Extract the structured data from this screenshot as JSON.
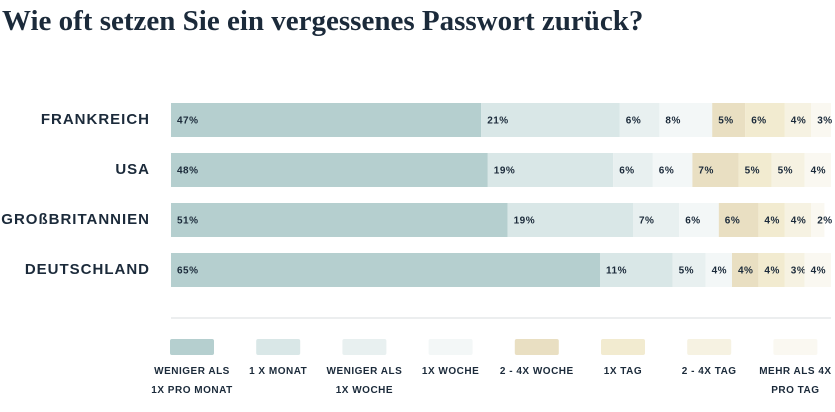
{
  "chart_data": {
    "type": "stacked-bar-horizontal",
    "title": "Wie oft setzen Sie ein vergessenes Passwort zurück?",
    "categories": [
      "FRANKREICH",
      "USA",
      "GROßBRITANNIEN",
      "DEUTSCHLAND"
    ],
    "xlim": [
      0,
      100
    ],
    "series": [
      {
        "name": "WENIGER ALS 1X PRO MONAT",
        "color": "#b5cfcf",
        "values": [
          47,
          48,
          51,
          65
        ],
        "value_labels": [
          "47%",
          "48%",
          "51%",
          "65%"
        ]
      },
      {
        "name": "1 X MONAT",
        "color": "#d9e7e7",
        "values": [
          21,
          19,
          19,
          11
        ],
        "value_labels": [
          "21%",
          "19%",
          "19%",
          "11%"
        ]
      },
      {
        "name": "WENIGER ALS 1X WOCHE",
        "color": "#e8f0f0",
        "values": [
          6,
          6,
          7,
          5
        ],
        "value_labels": [
          "6%",
          "6%",
          "7%",
          "5%"
        ]
      },
      {
        "name": "1X WOCHE",
        "color": "#f3f7f7",
        "values": [
          8,
          6,
          6,
          4
        ],
        "value_labels": [
          "8%",
          "6%",
          "6%",
          "4%"
        ]
      },
      {
        "name": "2 - 4X WOCHE",
        "color": "#e9dfc2",
        "values": [
          5,
          7,
          6,
          4
        ],
        "value_labels": [
          "5%",
          "7%",
          "6%",
          "4%"
        ]
      },
      {
        "name": "1X TAG",
        "color": "#f2ebd0",
        "values": [
          6,
          5,
          4,
          4
        ],
        "value_labels": [
          "6%",
          "5%",
          "4%",
          "4%"
        ]
      },
      {
        "name": "2 - 4X TAG",
        "color": "#f6f2e2",
        "values": [
          4,
          5,
          4,
          3
        ],
        "value_labels": [
          "4%",
          "5%",
          "4%",
          "3%"
        ]
      },
      {
        "name": "MEHR ALS 4X PRO TAG",
        "color": "#faf8f1",
        "values": [
          3,
          4,
          2,
          4
        ],
        "value_labels": [
          "3%",
          "4%",
          "2%",
          "4%"
        ]
      }
    ]
  }
}
